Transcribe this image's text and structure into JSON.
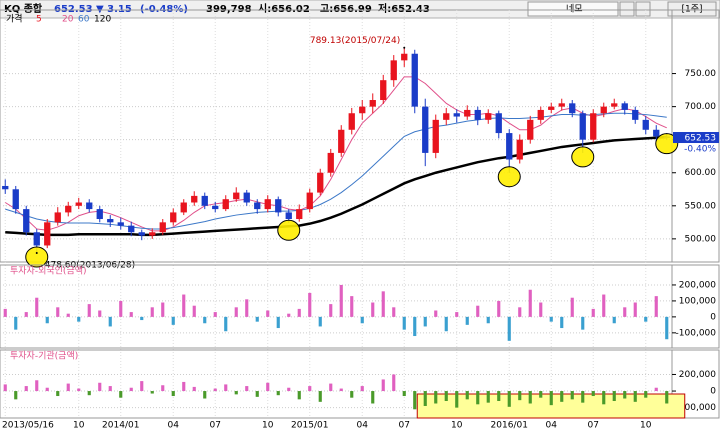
{
  "header": {
    "symbol": "KQ 종합",
    "price": "652.53",
    "change": "▼ 3.15",
    "change_pct": "(-0.48%)",
    "volume": "399,798",
    "open": "시:656.02",
    "high": "고:656.99",
    "low": "저:652.43",
    "mode": "네모",
    "period": "[1주]"
  },
  "chart_data": [
    {
      "type": "candlestick",
      "legend": [
        "가격",
        "5"
      ],
      "up_color": "#e8141e",
      "down_color": "#1a3cc8",
      "last_label": "652.53",
      "last_pct": "-0.40%",
      "annotations": [
        {
          "text": "789.13(2015/07/24)",
          "value": 789.13,
          "index": 38
        },
        {
          "text": "478.60(2013/06/28)",
          "value": 478.6,
          "index": 3
        }
      ],
      "categories": [
        "2013/05/16",
        null,
        null,
        null,
        null,
        null,
        null,
        "10",
        null,
        null,
        null,
        "2014/01",
        null,
        null,
        null,
        null,
        "04",
        null,
        null,
        null,
        "07",
        null,
        null,
        null,
        null,
        "10",
        null,
        null,
        null,
        "2015/01",
        null,
        null,
        null,
        null,
        "04",
        null,
        null,
        null,
        "07",
        null,
        null,
        null,
        null,
        "10",
        null,
        null,
        null,
        null,
        "2016/01",
        null,
        null,
        null,
        "04",
        null,
        null,
        null,
        "07",
        null,
        null,
        null,
        null,
        "10",
        null,
        null
      ],
      "ohlc": [
        [
          580,
          590,
          568,
          575
        ],
        [
          575,
          580,
          538,
          545
        ],
        [
          545,
          550,
          505,
          510
        ],
        [
          510,
          515,
          478.6,
          490
        ],
        [
          490,
          530,
          486,
          525
        ],
        [
          525,
          548,
          520,
          540
        ],
        [
          540,
          556,
          534,
          550
        ],
        [
          550,
          562,
          545,
          555
        ],
        [
          555,
          560,
          540,
          545
        ],
        [
          545,
          550,
          525,
          530
        ],
        [
          530,
          536,
          518,
          525
        ],
        [
          525,
          532,
          514,
          520
        ],
        [
          520,
          526,
          504,
          510
        ],
        [
          510,
          514,
          498,
          505
        ],
        [
          505,
          516,
          500,
          510
        ],
        [
          510,
          530,
          506,
          525
        ],
        [
          525,
          546,
          520,
          540
        ],
        [
          540,
          560,
          536,
          555
        ],
        [
          555,
          572,
          550,
          565
        ],
        [
          565,
          570,
          545,
          550
        ],
        [
          550,
          556,
          540,
          545
        ],
        [
          545,
          566,
          542,
          560
        ],
        [
          560,
          578,
          556,
          570
        ],
        [
          570,
          574,
          550,
          555
        ],
        [
          555,
          560,
          538,
          545
        ],
        [
          545,
          566,
          540,
          560
        ],
        [
          560,
          564,
          534,
          540
        ],
        [
          540,
          545,
          524,
          530
        ],
        [
          530,
          552,
          526,
          545
        ],
        [
          545,
          576,
          540,
          570
        ],
        [
          570,
          606,
          566,
          600
        ],
        [
          600,
          636,
          594,
          630
        ],
        [
          630,
          672,
          624,
          665
        ],
        [
          665,
          698,
          658,
          690
        ],
        [
          690,
          710,
          680,
          700
        ],
        [
          700,
          720,
          690,
          710
        ],
        [
          710,
          748,
          704,
          740
        ],
        [
          740,
          778,
          730,
          770
        ],
        [
          770,
          789.13,
          760,
          780
        ],
        [
          780,
          786,
          690,
          700
        ],
        [
          700,
          712,
          610,
          630
        ],
        [
          630,
          688,
          622,
          680
        ],
        [
          680,
          698,
          672,
          690
        ],
        [
          690,
          696,
          676,
          685
        ],
        [
          685,
          702,
          680,
          695
        ],
        [
          695,
          700,
          672,
          680
        ],
        [
          680,
          696,
          674,
          690
        ],
        [
          690,
          694,
          652,
          660
        ],
        [
          660,
          666,
          600,
          620
        ],
        [
          620,
          658,
          614,
          650
        ],
        [
          650,
          686,
          644,
          680
        ],
        [
          680,
          700,
          674,
          695
        ],
        [
          695,
          706,
          690,
          700
        ],
        [
          700,
          712,
          694,
          705
        ],
        [
          705,
          710,
          684,
          690
        ],
        [
          690,
          694,
          630,
          650
        ],
        [
          650,
          696,
          646,
          690
        ],
        [
          690,
          706,
          684,
          700
        ],
        [
          700,
          712,
          696,
          705
        ],
        [
          705,
          708,
          688,
          695
        ],
        [
          695,
          700,
          674,
          680
        ],
        [
          680,
          686,
          658,
          665
        ],
        [
          665,
          672,
          648,
          655
        ],
        [
          655,
          660,
          650,
          652.53
        ]
      ],
      "series": [
        {
          "name": "20",
          "color": "#e0508a",
          "width": 1,
          "values": [
            555,
            545,
            530,
            515,
            513,
            518,
            525,
            535,
            540,
            542,
            538,
            532,
            525,
            518,
            512,
            512,
            518,
            528,
            540,
            550,
            553,
            555,
            558,
            560,
            556,
            552,
            550,
            545,
            543,
            550,
            565,
            590,
            620,
            650,
            675,
            690,
            705,
            725,
            745,
            745,
            735,
            720,
            705,
            695,
            688,
            688,
            690,
            686,
            675,
            665,
            665,
            672,
            685,
            695,
            698,
            690,
            685,
            688,
            693,
            697,
            694,
            685,
            675,
            668
          ]
        },
        {
          "name": "60",
          "color": "#3c78c8",
          "width": 1,
          "values": [
            545,
            540,
            535,
            530,
            527,
            525,
            524,
            524,
            524,
            523,
            522,
            520,
            518,
            516,
            515,
            515,
            517,
            520,
            523,
            526,
            530,
            533,
            536,
            538,
            540,
            541,
            542,
            542,
            543,
            546,
            552,
            560,
            570,
            582,
            595,
            610,
            625,
            640,
            655,
            662,
            666,
            670,
            672,
            675,
            678,
            680,
            682,
            683,
            682,
            682,
            683,
            684,
            686,
            688,
            688,
            687,
            688,
            689,
            690,
            690,
            689,
            688,
            686,
            684
          ]
        },
        {
          "name": "120",
          "color": "#000000",
          "width": 2.5,
          "values": [
            510,
            509,
            508,
            507,
            506,
            506,
            506,
            507,
            507,
            507,
            507,
            507,
            507,
            506,
            506,
            507,
            508,
            509,
            510,
            511,
            512,
            513,
            514,
            515,
            516,
            517,
            518,
            519,
            520,
            523,
            527,
            532,
            538,
            545,
            552,
            560,
            568,
            576,
            584,
            590,
            595,
            600,
            604,
            608,
            612,
            616,
            619,
            622,
            624,
            627,
            630,
            633,
            636,
            639,
            641,
            643,
            645,
            647,
            649,
            650,
            651,
            652,
            653,
            654
          ]
        }
      ],
      "ylim": [
        465,
        828
      ],
      "yticks": [
        {
          "value": 500,
          "label": "500.00"
        },
        {
          "value": 550,
          "label": "550.00"
        },
        {
          "value": 600,
          "label": "600.00"
        },
        {
          "value": 650,
          "label": "650.00"
        },
        {
          "value": 700,
          "label": "700.00"
        },
        {
          "value": 750,
          "label": "750.00"
        }
      ],
      "grid": true
    },
    {
      "type": "bar",
      "title": "투자자-외국인(금액)",
      "pos_color": "#e060c0",
      "neg_color": "#3aa0d0",
      "values": [
        50000,
        -80000,
        30000,
        120000,
        -40000,
        60000,
        20000,
        -30000,
        80000,
        40000,
        -60000,
        100000,
        30000,
        -20000,
        60000,
        90000,
        -50000,
        140000,
        70000,
        -40000,
        30000,
        -90000,
        60000,
        110000,
        -30000,
        40000,
        -70000,
        20000,
        50000,
        150000,
        -60000,
        80000,
        200000,
        130000,
        -40000,
        90000,
        160000,
        60000,
        -80000,
        -120000,
        -60000,
        40000,
        -90000,
        30000,
        -50000,
        70000,
        -40000,
        100000,
        -150000,
        60000,
        170000,
        90000,
        -30000,
        -70000,
        120000,
        -80000,
        50000,
        140000,
        -40000,
        60000,
        90000,
        -30000,
        130000,
        -140000
      ],
      "ylim": [
        -195000,
        325000
      ],
      "yticks": [
        {
          "value": 200000,
          "label": "200,000"
        },
        {
          "value": 100000,
          "label": "100,000"
        },
        0,
        {
          "value": -100000,
          "label": "-100,000"
        }
      ],
      "grid": true
    },
    {
      "type": "bar",
      "title": "투자자-기관(금액)",
      "pos_color": "#e060c0",
      "neg_color": "#4a9a2a",
      "values": [
        80000,
        -100000,
        60000,
        130000,
        40000,
        -60000,
        90000,
        30000,
        -50000,
        100000,
        60000,
        -80000,
        40000,
        120000,
        -30000,
        70000,
        -60000,
        110000,
        50000,
        -90000,
        30000,
        80000,
        -40000,
        60000,
        -70000,
        100000,
        -50000,
        40000,
        -100000,
        60000,
        -130000,
        90000,
        30000,
        -80000,
        60000,
        -150000,
        140000,
        200000,
        -60000,
        -220000,
        -180000,
        -150000,
        -120000,
        -200000,
        -100000,
        -160000,
        -140000,
        -120000,
        -190000,
        -110000,
        -150000,
        -80000,
        -170000,
        -130000,
        -100000,
        -140000,
        -60000,
        -160000,
        -120000,
        -90000,
        -130000,
        -80000,
        40000,
        -150000
      ],
      "ylim": [
        -325000,
        495000
      ],
      "yticks": [
        {
          "value": 200000,
          "label": "200,000"
        },
        0,
        {
          "value": -200000,
          "label": "-200,000"
        }
      ],
      "grid": true
    }
  ]
}
